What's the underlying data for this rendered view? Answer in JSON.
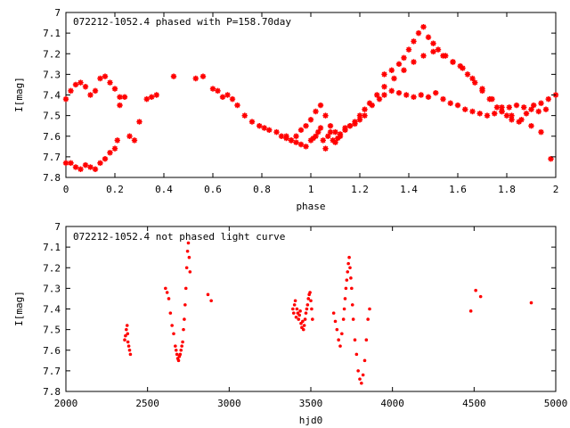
{
  "chart_data": [
    {
      "type": "scatter",
      "title": "072212-1052.4 phased with P=158.70day",
      "xlabel": "phase",
      "ylabel": "I[mag]",
      "xlim": [
        0,
        2
      ],
      "ylim": [
        7.8,
        7.0
      ],
      "y_reversed": true,
      "grid": false,
      "x_ticks": [
        "0",
        "0.2",
        "0.4",
        "0.6",
        "0.8",
        "1",
        "1.2",
        "1.4",
        "1.6",
        "1.8",
        "2"
      ],
      "y_ticks": [
        "7",
        "7.1",
        "7.2",
        "7.3",
        "7.4",
        "7.5",
        "7.6",
        "7.7",
        "7.8"
      ],
      "marker_color": "#ff0000",
      "series": [
        {
          "x": [
            0.0,
            0.02,
            0.04,
            0.06,
            0.08,
            0.1,
            0.12,
            0.14,
            0.16,
            0.18,
            0.2,
            0.22,
            0.0,
            0.02,
            0.04,
            0.06,
            0.08,
            0.1,
            0.12,
            0.14,
            0.16,
            0.18,
            0.2,
            0.21,
            0.22,
            0.24,
            0.26,
            0.28,
            0.3,
            0.33,
            0.35,
            0.37,
            0.44,
            0.53,
            0.56,
            0.6,
            0.62,
            0.64,
            0.66,
            0.68,
            0.7,
            0.73,
            0.76,
            0.79,
            0.81,
            0.83,
            0.86,
            0.88,
            0.9,
            0.92,
            0.94,
            0.96,
            0.98,
            1.0,
            1.02,
            1.04,
            1.06,
            1.08,
            1.1,
            1.12,
            1.14,
            1.16,
            1.18,
            1.2,
            1.22,
            1.25,
            1.28,
            1.3,
            1.33,
            1.36,
            1.39,
            1.42,
            1.45,
            1.48,
            1.51,
            1.54,
            1.57,
            1.6,
            1.63,
            1.66,
            1.69,
            1.72,
            1.75,
            1.78,
            1.81,
            1.84,
            1.87,
            1.9,
            1.93,
            1.96,
            1.3,
            1.33,
            1.36,
            1.38,
            1.4,
            1.42,
            1.44,
            1.46,
            1.48,
            1.5,
            1.52,
            1.55,
            1.58,
            1.61,
            1.64,
            1.67,
            1.7,
            1.73,
            1.76,
            1.78,
            1.8,
            1.82,
            1.85,
            1.88,
            1.91,
            1.94,
            1.97,
            2.0,
            0.9,
            0.92,
            0.94,
            0.96,
            0.98,
            1.0,
            1.01,
            1.02,
            1.03,
            1.04,
            1.05,
            1.06,
            1.07,
            1.08,
            1.09,
            1.1,
            1.11,
            1.12,
            1.14,
            1.16,
            1.18,
            1.2,
            1.22,
            1.24,
            1.27,
            1.3,
            1.34,
            1.38,
            1.42,
            1.46,
            1.5,
            1.54,
            1.58,
            1.62,
            1.66,
            1.7,
            1.74,
            1.78,
            1.82,
            1.86,
            1.9,
            1.94,
            1.98
          ],
          "y": [
            7.42,
            7.38,
            7.35,
            7.34,
            7.36,
            7.4,
            7.38,
            7.32,
            7.31,
            7.34,
            7.37,
            7.41,
            7.73,
            7.73,
            7.75,
            7.76,
            7.74,
            7.75,
            7.76,
            7.73,
            7.71,
            7.68,
            7.66,
            7.62,
            7.45,
            7.41,
            7.6,
            7.62,
            7.53,
            7.42,
            7.41,
            7.4,
            7.31,
            7.32,
            7.31,
            7.37,
            7.38,
            7.41,
            7.4,
            7.42,
            7.45,
            7.5,
            7.53,
            7.55,
            7.56,
            7.57,
            7.58,
            7.6,
            7.61,
            7.62,
            7.6,
            7.57,
            7.55,
            7.52,
            7.48,
            7.45,
            7.5,
            7.55,
            7.58,
            7.6,
            7.56,
            7.55,
            7.54,
            7.52,
            7.5,
            7.45,
            7.42,
            7.4,
            7.38,
            7.39,
            7.4,
            7.41,
            7.4,
            7.41,
            7.39,
            7.42,
            7.44,
            7.45,
            7.47,
            7.48,
            7.49,
            7.5,
            7.49,
            7.48,
            7.46,
            7.45,
            7.46,
            7.47,
            7.48,
            7.47,
            7.3,
            7.28,
            7.25,
            7.22,
            7.18,
            7.14,
            7.1,
            7.07,
            7.12,
            7.15,
            7.18,
            7.21,
            7.24,
            7.26,
            7.3,
            7.34,
            7.38,
            7.42,
            7.46,
            7.48,
            7.5,
            7.52,
            7.53,
            7.49,
            7.45,
            7.44,
            7.42,
            7.4,
            7.6,
            7.62,
            7.63,
            7.64,
            7.65,
            7.62,
            7.61,
            7.6,
            7.58,
            7.56,
            7.62,
            7.66,
            7.6,
            7.58,
            7.62,
            7.63,
            7.61,
            7.59,
            7.57,
            7.55,
            7.53,
            7.5,
            7.47,
            7.44,
            7.4,
            7.36,
            7.32,
            7.28,
            7.24,
            7.21,
            7.19,
            7.21,
            7.24,
            7.27,
            7.32,
            7.37,
            7.42,
            7.46,
            7.5,
            7.52,
            7.55,
            7.58,
            7.71
          ]
        }
      ]
    },
    {
      "type": "scatter",
      "title": "072212-1052.4 not phased light curve",
      "xlabel": "hjd0",
      "ylabel": "I[mag]",
      "xlim": [
        2000,
        5000
      ],
      "ylim": [
        7.8,
        7.0
      ],
      "y_reversed": true,
      "grid": false,
      "x_ticks": [
        "2000",
        "2500",
        "3000",
        "3500",
        "4000",
        "4500",
        "5000"
      ],
      "y_ticks": [
        "7",
        "7.1",
        "7.2",
        "7.3",
        "7.4",
        "7.5",
        "7.6",
        "7.7",
        "7.8"
      ],
      "marker_color": "#ff0000",
      "series": [
        {
          "x": [
            2360,
            2365,
            2370,
            2375,
            2378,
            2380,
            2385,
            2390,
            2395,
            2610,
            2620,
            2630,
            2640,
            2650,
            2660,
            2670,
            2675,
            2680,
            2685,
            2690,
            2695,
            2700,
            2705,
            2710,
            2715,
            2720,
            2725,
            2730,
            2735,
            2740,
            2745,
            2750,
            2755,
            2760,
            2870,
            2890,
            3390,
            3395,
            3400,
            3405,
            3410,
            3415,
            3420,
            3425,
            3430,
            3435,
            3440,
            3445,
            3450,
            3455,
            3460,
            3465,
            3470,
            3475,
            3480,
            3485,
            3490,
            3495,
            3500,
            3505,
            3510,
            3640,
            3650,
            3660,
            3670,
            3680,
            3690,
            3700,
            3705,
            3710,
            3715,
            3720,
            3725,
            3730,
            3735,
            3740,
            3745,
            3750,
            3755,
            3760,
            3770,
            3780,
            3790,
            3800,
            3810,
            3820,
            3830,
            3840,
            3850,
            3860,
            4480,
            4510,
            4540,
            4850
          ],
          "y": [
            7.55,
            7.53,
            7.5,
            7.48,
            7.52,
            7.56,
            7.58,
            7.6,
            7.62,
            7.3,
            7.32,
            7.35,
            7.42,
            7.48,
            7.52,
            7.58,
            7.6,
            7.62,
            7.64,
            7.65,
            7.63,
            7.62,
            7.6,
            7.58,
            7.56,
            7.5,
            7.45,
            7.38,
            7.3,
            7.2,
            7.12,
            7.08,
            7.15,
            7.22,
            7.33,
            7.36,
            7.4,
            7.42,
            7.38,
            7.36,
            7.44,
            7.4,
            7.42,
            7.45,
            7.43,
            7.41,
            7.47,
            7.49,
            7.46,
            7.5,
            7.48,
            7.45,
            7.42,
            7.4,
            7.38,
            7.35,
            7.33,
            7.32,
            7.36,
            7.4,
            7.45,
            7.42,
            7.46,
            7.5,
            7.55,
            7.58,
            7.52,
            7.45,
            7.4,
            7.35,
            7.3,
            7.26,
            7.22,
            7.18,
            7.15,
            7.2,
            7.25,
            7.3,
            7.38,
            7.45,
            7.55,
            7.62,
            7.7,
            7.74,
            7.76,
            7.72,
            7.65,
            7.55,
            7.45,
            7.4,
            7.41,
            7.31,
            7.34,
            7.37
          ]
        }
      ]
    }
  ]
}
